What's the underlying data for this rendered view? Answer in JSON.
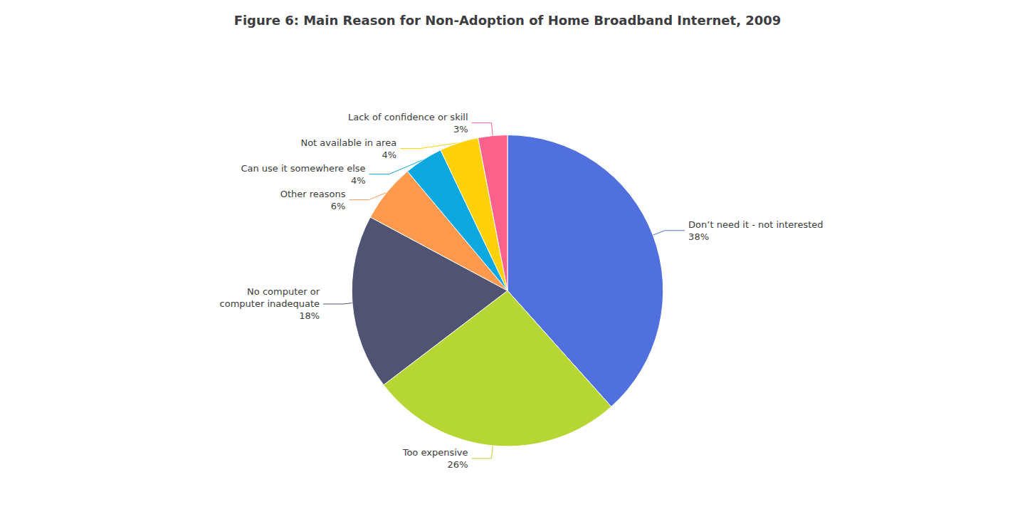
{
  "chart_data": {
    "type": "pie",
    "title": "Figure 6: Main Reason for Non-Adoption of Home Broadband Internet, 2009",
    "categories": [
      "Don’t need it - not interested",
      "Too expensive",
      "No computer or\ncomputer inadequate",
      "Other reasons",
      "Can use it somewhere else",
      "Not available in area",
      "Lack of confidence or skill"
    ],
    "values": [
      38,
      26,
      18,
      6,
      4,
      4,
      3
    ],
    "value_labels": [
      "38%",
      "26%",
      "18%",
      "6%",
      "4%",
      "4%",
      "3%"
    ],
    "data_labels": true
  }
}
